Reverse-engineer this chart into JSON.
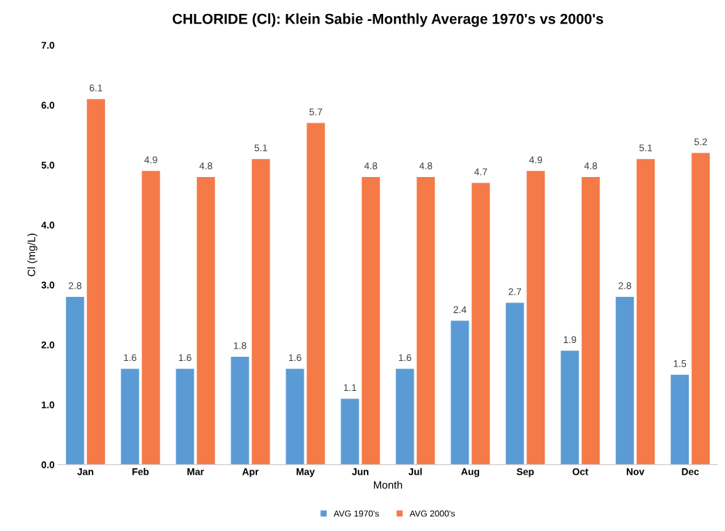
{
  "chart_data": {
    "type": "bar",
    "title": "CHLORIDE (Cl): Klein Sabie -Monthly Average 1970's vs 2000's",
    "xlabel": "Month",
    "ylabel": "Cl (mg/L)",
    "categories": [
      "Jan",
      "Feb",
      "Mar",
      "Apr",
      "May",
      "Jun",
      "Jul",
      "Aug",
      "Sep",
      "Oct",
      "Nov",
      "Dec"
    ],
    "series": [
      {
        "name": "AVG 1970's",
        "color": "#5b9bd5",
        "values": [
          2.8,
          1.6,
          1.6,
          1.8,
          1.6,
          1.1,
          1.6,
          2.4,
          2.7,
          1.9,
          2.8,
          1.5
        ]
      },
      {
        "name": "AVG 2000's",
        "color": "#f47a48",
        "values": [
          6.1,
          4.9,
          4.8,
          5.1,
          5.7,
          4.8,
          4.8,
          4.7,
          4.9,
          4.8,
          5.1,
          5.2
        ]
      }
    ],
    "ylim": [
      0,
      7
    ],
    "yticks": [
      {
        "value": 0,
        "label": "0.0"
      },
      {
        "value": 1,
        "label": "1.0"
      },
      {
        "value": 2,
        "label": "2.0"
      },
      {
        "value": 3,
        "label": "3.0"
      },
      {
        "value": 4,
        "label": "4.0"
      },
      {
        "value": 5,
        "label": "5.0"
      },
      {
        "value": 6,
        "label": "6.0"
      },
      {
        "value": 7,
        "label": "7.0"
      }
    ],
    "data_labels": true,
    "legend": "bottom",
    "grid": false
  }
}
